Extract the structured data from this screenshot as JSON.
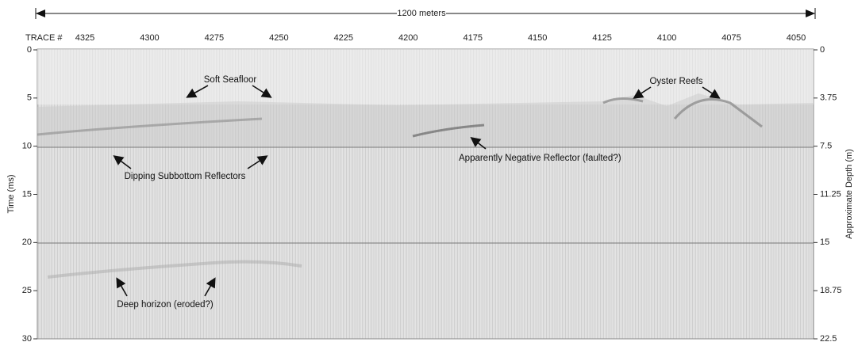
{
  "scale_bar": {
    "label": "1200 meters"
  },
  "trace_axis": {
    "title": "TRACE #",
    "labels": [
      "4325",
      "4300",
      "4275",
      "4250",
      "4225",
      "4200",
      "4175",
      "4150",
      "4125",
      "4100",
      "4075",
      "4050"
    ]
  },
  "left_axis": {
    "title": "Time (ms)",
    "ticks": [
      "0",
      "5",
      "10",
      "15",
      "20",
      "25",
      "30"
    ]
  },
  "right_axis": {
    "title": "Approximate Depth (m)",
    "ticks": [
      "0",
      "3.75",
      "7.5",
      "11.25",
      "15",
      "18.75",
      "22.5"
    ]
  },
  "annotations": {
    "soft_seafloor": "Soft Seafloor",
    "oyster_reefs": "Oyster Reefs",
    "negative_reflector": "Apparently Negative Reflector (faulted?)",
    "dipping_reflectors": "Dipping Subbottom Reflectors",
    "deep_horizon": "Deep horizon (eroded?)"
  }
}
